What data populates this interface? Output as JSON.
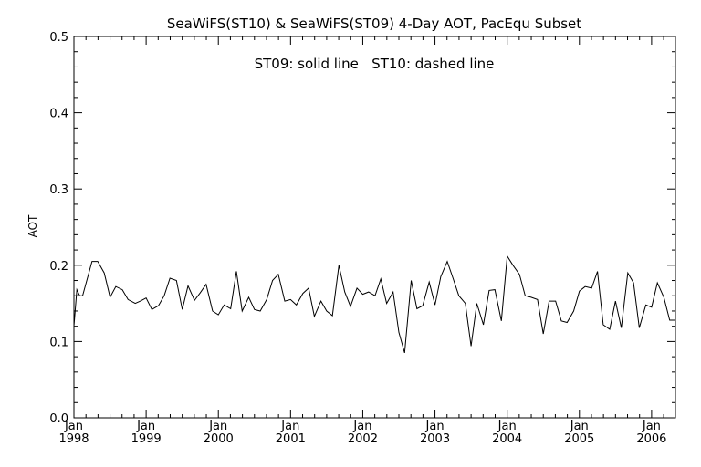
{
  "chart_data": {
    "type": "line",
    "title": "SeaWiFS(ST10) & SeaWiFS(ST09) 4-Day AOT, PacEqu Subset",
    "annotation": "ST09: solid line   ST10: dashed line",
    "ylabel": "AOT",
    "xlabel": "",
    "ylim": [
      0.0,
      0.5
    ],
    "xlim": [
      1998.0,
      2006.33
    ],
    "yticks": [
      "0.0",
      "0.1",
      "0.2",
      "0.3",
      "0.4",
      "0.5"
    ],
    "xticks": [
      {
        "month": "Jan",
        "year": "1998"
      },
      {
        "month": "Jan",
        "year": "1999"
      },
      {
        "month": "Jan",
        "year": "2000"
      },
      {
        "month": "Jan",
        "year": "2001"
      },
      {
        "month": "Jan",
        "year": "2002"
      },
      {
        "month": "Jan",
        "year": "2003"
      },
      {
        "month": "Jan",
        "year": "2004"
      },
      {
        "month": "Jan",
        "year": "2005"
      },
      {
        "month": "Jan",
        "year": "2006"
      }
    ],
    "grid": false,
    "series": [
      {
        "name": "ST09",
        "style": "solid",
        "color": "#000000",
        "x": [
          1998.0,
          1998.04,
          1998.08,
          1998.12,
          1998.25,
          1998.33,
          1998.42,
          1998.5,
          1998.58,
          1998.67,
          1998.75,
          1998.85,
          1998.92,
          1999.0,
          1999.08,
          1999.17,
          1999.25,
          1999.33,
          1999.42,
          1999.5,
          1999.58,
          1999.67,
          1999.75,
          1999.83,
          1999.92,
          2000.0,
          2000.08,
          2000.17,
          2000.25,
          2000.33,
          2000.42,
          2000.5,
          2000.58,
          2000.67,
          2000.75,
          2000.83,
          2000.92,
          2001.0,
          2001.08,
          2001.17,
          2001.25,
          2001.33,
          2001.42,
          2001.5,
          2001.58,
          2001.67,
          2001.75,
          2001.83,
          2001.92,
          2002.0,
          2002.08,
          2002.17,
          2002.25,
          2002.33,
          2002.42,
          2002.5,
          2002.58,
          2002.67,
          2002.75,
          2002.83,
          2002.92,
          2003.0,
          2003.08,
          2003.17,
          2003.25,
          2003.33,
          2003.42,
          2003.5,
          2003.58,
          2003.67,
          2003.75,
          2003.83,
          2003.92,
          2004.0,
          2004.08,
          2004.17,
          2004.25,
          2004.33,
          2004.42,
          2004.5,
          2004.58,
          2004.67,
          2004.75,
          2004.83,
          2004.92,
          2005.0,
          2005.08,
          2005.17,
          2005.25,
          2005.33,
          2005.42,
          2005.5,
          2005.58,
          2005.67,
          2005.75,
          2005.83,
          2005.92,
          2006.0,
          2006.08,
          2006.17,
          2006.25,
          2006.33
        ],
        "values": [
          0.12,
          0.168,
          0.16,
          0.16,
          0.205,
          0.205,
          0.19,
          0.158,
          0.172,
          0.168,
          0.155,
          0.15,
          0.153,
          0.157,
          0.142,
          0.147,
          0.16,
          0.183,
          0.18,
          0.142,
          0.173,
          0.154,
          0.164,
          0.175,
          0.14,
          0.135,
          0.148,
          0.143,
          0.192,
          0.14,
          0.158,
          0.142,
          0.14,
          0.155,
          0.18,
          0.188,
          0.153,
          0.155,
          0.148,
          0.163,
          0.17,
          0.133,
          0.153,
          0.14,
          0.134,
          0.2,
          0.165,
          0.146,
          0.17,
          0.162,
          0.165,
          0.16,
          0.182,
          0.15,
          0.165,
          0.112,
          0.085,
          0.18,
          0.143,
          0.147,
          0.178,
          0.148,
          0.185,
          0.205,
          0.183,
          0.16,
          0.15,
          0.094,
          0.15,
          0.122,
          0.167,
          0.168,
          0.127,
          0.212,
          0.2,
          0.188,
          0.16,
          0.158,
          0.155,
          0.11,
          0.153,
          0.153,
          0.127,
          0.125,
          0.14,
          0.166,
          0.172,
          0.17,
          0.192,
          0.122,
          0.116,
          0.153,
          0.118,
          0.19,
          0.177,
          0.118,
          0.148,
          0.145,
          0.177,
          0.158,
          0.128,
          0.128
        ]
      }
    ]
  }
}
